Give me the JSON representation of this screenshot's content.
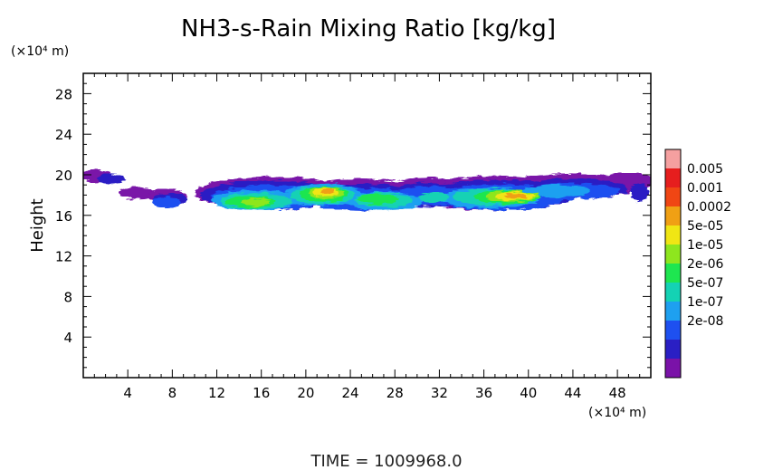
{
  "chart_data": {
    "type": "heatmap",
    "title": "NH3-s-Rain Mixing Ratio [kg/kg]",
    "ylabel": "Height",
    "xlabel": "",
    "y_unit": "(×10⁴ m)",
    "x_unit": "(×10⁴ m)",
    "xlim": [
      0,
      51
    ],
    "ylim": [
      0,
      30
    ],
    "x_ticks": [
      "4",
      "8",
      "12",
      "16",
      "20",
      "24",
      "28",
      "32",
      "36",
      "40",
      "44",
      "48"
    ],
    "y_ticks": [
      "4",
      "8",
      "12",
      "16",
      "20",
      "24",
      "28"
    ],
    "x_tick_values": [
      4,
      8,
      12,
      16,
      20,
      24,
      28,
      32,
      36,
      40,
      44,
      48
    ],
    "y_tick_values": [
      4,
      8,
      12,
      16,
      20,
      24,
      28
    ],
    "colorbar": {
      "labels": [
        "0.005",
        "0.001",
        "0.0002",
        "5e-05",
        "1e-05",
        "2e-06",
        "5e-07",
        "1e-07",
        "2e-08"
      ],
      "colors": [
        "#7a12a8",
        "#2a1fc4",
        "#1e50f0",
        "#1ea0f0",
        "#14d2b4",
        "#1ee650",
        "#8ee61e",
        "#f0e614",
        "#f0a014",
        "#f04614",
        "#e61e1e",
        "#f5a0a0"
      ]
    },
    "field_levels": [
      {
        "level": 0,
        "blobs": [
          [
            1,
            19.9,
            1.6,
            0.6
          ],
          [
            4.8,
            18.2,
            1.6,
            0.6
          ],
          [
            7.5,
            17.9,
            1.8,
            0.7
          ],
          [
            11.5,
            18.1,
            1.0,
            0.7
          ],
          [
            17,
            18.2,
            7,
            1.6
          ],
          [
            25,
            18.1,
            6,
            1.5
          ],
          [
            31,
            18.3,
            4,
            1.4
          ],
          [
            37,
            18.2,
            7,
            1.7
          ],
          [
            44,
            18.9,
            6,
            1.2
          ],
          [
            49,
            19.4,
            2.5,
            0.8
          ]
        ]
      },
      {
        "level": 1,
        "blobs": [
          [
            2.5,
            19.6,
            1.2,
            0.5
          ],
          [
            7.8,
            17.6,
            1.5,
            0.6
          ],
          [
            17,
            18.0,
            6.5,
            1.4
          ],
          [
            25,
            17.8,
            5.5,
            1.3
          ],
          [
            31,
            18.0,
            3.5,
            1.2
          ],
          [
            37.5,
            18.0,
            6.5,
            1.5
          ],
          [
            44,
            18.6,
            5,
            1.0
          ],
          [
            50,
            18.3,
            0.8,
            0.9
          ]
        ]
      },
      {
        "level": 2,
        "blobs": [
          [
            7.5,
            17.3,
            1.2,
            0.6
          ],
          [
            17,
            17.8,
            5.5,
            1.2
          ],
          [
            25,
            17.6,
            5,
            1.1
          ],
          [
            31,
            17.9,
            3,
            1.0
          ],
          [
            37.5,
            17.8,
            5.8,
            1.3
          ],
          [
            44,
            18.4,
            4.2,
            0.8
          ]
        ]
      },
      {
        "level": 3,
        "blobs": [
          [
            15.5,
            17.5,
            4.0,
            1.0
          ],
          [
            21.5,
            18.0,
            3.5,
            1.1
          ],
          [
            27,
            17.4,
            3.5,
            0.9
          ],
          [
            36.5,
            17.7,
            4.5,
            1.0
          ],
          [
            42.5,
            18.4,
            3.0,
            0.6
          ]
        ]
      },
      {
        "level": 4,
        "blobs": [
          [
            15.5,
            17.4,
            3.2,
            0.8
          ],
          [
            21.5,
            18.0,
            2.9,
            0.9
          ],
          [
            27,
            17.5,
            2.6,
            0.7
          ],
          [
            37,
            17.8,
            3.8,
            0.8
          ],
          [
            31.5,
            17.8,
            1.4,
            0.5
          ]
        ]
      },
      {
        "level": 5,
        "blobs": [
          [
            15,
            17.3,
            2.2,
            0.6
          ],
          [
            21.6,
            18.1,
            2.2,
            0.8
          ],
          [
            26.5,
            17.6,
            1.8,
            0.5
          ],
          [
            38,
            17.8,
            3.0,
            0.7
          ]
        ]
      },
      {
        "level": 6,
        "blobs": [
          [
            15.5,
            17.3,
            1.3,
            0.4
          ],
          [
            21.8,
            18.2,
            1.6,
            0.6
          ],
          [
            38.5,
            17.9,
            2.4,
            0.55
          ]
        ]
      },
      {
        "level": 7,
        "blobs": [
          [
            21.8,
            18.3,
            1.1,
            0.45
          ],
          [
            38.8,
            17.9,
            1.8,
            0.4
          ]
        ]
      },
      {
        "level": 8,
        "blobs": [
          [
            22,
            18.4,
            0.6,
            0.25
          ],
          [
            38.8,
            17.9,
            1.0,
            0.25
          ]
        ]
      }
    ],
    "grid": false,
    "legend_position": "right"
  },
  "footer": {
    "time_label": "TIME  =  1009968.0"
  }
}
